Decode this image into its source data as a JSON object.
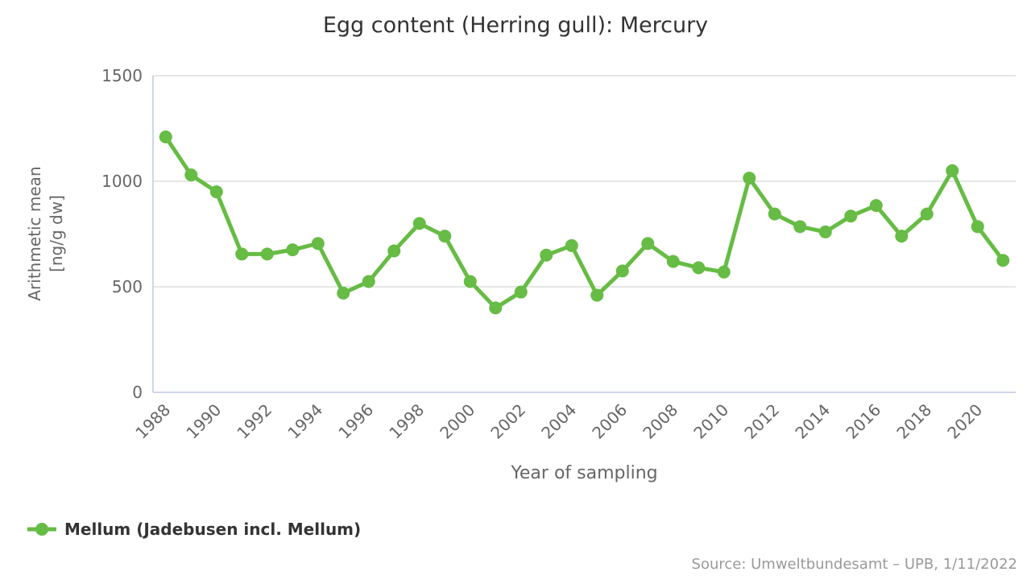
{
  "chart_data": {
    "type": "line",
    "title": "Egg content (Herring gull): Mercury",
    "xlabel": "Year of sampling",
    "ylabel_line1": "Arithmetic mean",
    "ylabel_line2": "[ng/g dw]",
    "categories": [
      "1988",
      "1989",
      "1990",
      "1991",
      "1992",
      "1993",
      "1994",
      "1995",
      "1996",
      "1997",
      "1998",
      "1999",
      "2000",
      "2001",
      "2002",
      "2003",
      "2004",
      "2005",
      "2006",
      "2007",
      "2008",
      "2009",
      "2010",
      "2011",
      "2012",
      "2013",
      "2014",
      "2015",
      "2016",
      "2017",
      "2018",
      "2019",
      "2020",
      "2021"
    ],
    "xtick_labels": [
      "1988",
      "1990",
      "1992",
      "1994",
      "1996",
      "1998",
      "2000",
      "2002",
      "2004",
      "2006",
      "2008",
      "2010",
      "2012",
      "2014",
      "2016",
      "2018",
      "2020"
    ],
    "yticks": [
      0,
      500,
      1000,
      1500
    ],
    "ylim": [
      0,
      1500
    ],
    "grid": true,
    "legend_position": "bottom-left",
    "series": [
      {
        "name": "Mellum (Jadebusen incl. Mellum)",
        "color": "#66bc44",
        "values": [
          1210,
          1030,
          950,
          655,
          655,
          675,
          705,
          470,
          525,
          670,
          800,
          740,
          525,
          400,
          475,
          650,
          695,
          460,
          575,
          705,
          620,
          590,
          570,
          1015,
          845,
          785,
          760,
          835,
          885,
          740,
          845,
          1050,
          785,
          625
        ]
      }
    ],
    "colors": {
      "series_green": "#66bc44",
      "gridline": "#e6e6e6",
      "axis_line": "#ccd6eb",
      "title_text": "#333333",
      "tick_text": "#666666",
      "source_text": "#999999"
    }
  },
  "footer": {
    "source": "Source: Umweltbundesamt – UPB, 1/11/2022"
  }
}
